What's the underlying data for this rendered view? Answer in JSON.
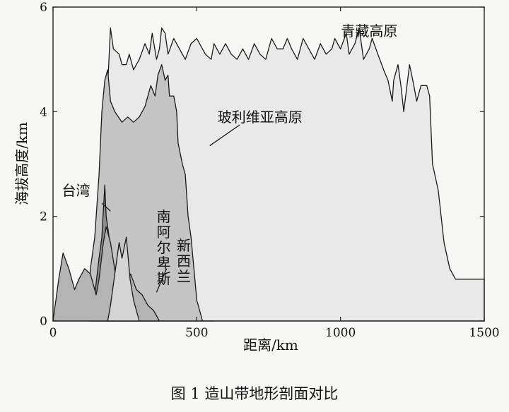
{
  "caption": "图 1   造山带地形剖面对比",
  "chart_data": {
    "type": "area",
    "xlabel": "距离/km",
    "ylabel": "海拔高度/km",
    "xlim": [
      0,
      1500
    ],
    "ylim": [
      0,
      6
    ],
    "xticks": [
      0,
      500,
      1000,
      1500
    ],
    "yticks": [
      0,
      2,
      4,
      6
    ],
    "grid": false,
    "series": [
      {
        "name": "青藏高原",
        "fill": "#e9e9e9",
        "points": [
          [
            150,
            0
          ],
          [
            175,
            0.9
          ],
          [
            190,
            4.5
          ],
          [
            200,
            5.6
          ],
          [
            210,
            5.2
          ],
          [
            230,
            5.1
          ],
          [
            240,
            4.9
          ],
          [
            255,
            4.9
          ],
          [
            265,
            5.1
          ],
          [
            280,
            4.8
          ],
          [
            290,
            4.9
          ],
          [
            300,
            5.0
          ],
          [
            320,
            5.3
          ],
          [
            335,
            5.1
          ],
          [
            345,
            5.5
          ],
          [
            360,
            5.0
          ],
          [
            370,
            5.2
          ],
          [
            378,
            5.6
          ],
          [
            390,
            5.5
          ],
          [
            400,
            5.1
          ],
          [
            420,
            5.4
          ],
          [
            440,
            5.2
          ],
          [
            460,
            5.0
          ],
          [
            480,
            5.3
          ],
          [
            500,
            5.4
          ],
          [
            530,
            5.1
          ],
          [
            550,
            5.0
          ],
          [
            560,
            5.3
          ],
          [
            580,
            5.1
          ],
          [
            600,
            5.3
          ],
          [
            620,
            5.1
          ],
          [
            640,
            5.0
          ],
          [
            660,
            5.2
          ],
          [
            680,
            5.0
          ],
          [
            700,
            5.3
          ],
          [
            720,
            5.1
          ],
          [
            740,
            5.0
          ],
          [
            760,
            5.4
          ],
          [
            780,
            5.2
          ],
          [
            800,
            5.2
          ],
          [
            815,
            5.4
          ],
          [
            830,
            5.2
          ],
          [
            850,
            5.0
          ],
          [
            870,
            5.4
          ],
          [
            890,
            5.2
          ],
          [
            910,
            5.0
          ],
          [
            930,
            5.3
          ],
          [
            950,
            5.1
          ],
          [
            970,
            5.2
          ],
          [
            980,
            5.4
          ],
          [
            1000,
            5.2
          ],
          [
            1020,
            5.5
          ],
          [
            1030,
            5.1
          ],
          [
            1050,
            5.3
          ],
          [
            1065,
            5.6
          ],
          [
            1080,
            5.0
          ],
          [
            1100,
            5.2
          ],
          [
            1110,
            5.4
          ],
          [
            1130,
            5.1
          ],
          [
            1150,
            4.8
          ],
          [
            1165,
            4.6
          ],
          [
            1180,
            4.2
          ],
          [
            1185,
            4.6
          ],
          [
            1200,
            4.9
          ],
          [
            1210,
            4.5
          ],
          [
            1220,
            4.0
          ],
          [
            1240,
            4.9
          ],
          [
            1255,
            4.5
          ],
          [
            1265,
            4.2
          ],
          [
            1280,
            4.5
          ],
          [
            1300,
            4.5
          ],
          [
            1310,
            4.3
          ],
          [
            1320,
            3.0
          ],
          [
            1340,
            2.5
          ],
          [
            1360,
            1.5
          ],
          [
            1380,
            1.0
          ],
          [
            1400,
            0.8
          ],
          [
            1500,
            0.8
          ]
        ]
      },
      {
        "name": "玻利维亚高原",
        "fill": "#c4c4c4",
        "points": [
          [
            120,
            0
          ],
          [
            130,
            1.0
          ],
          [
            145,
            1.6
          ],
          [
            160,
            2.8
          ],
          [
            170,
            4.0
          ],
          [
            180,
            4.6
          ],
          [
            190,
            4.8
          ],
          [
            200,
            4.2
          ],
          [
            215,
            4.0
          ],
          [
            240,
            3.8
          ],
          [
            260,
            3.9
          ],
          [
            280,
            3.8
          ],
          [
            300,
            3.9
          ],
          [
            320,
            4.1
          ],
          [
            340,
            4.5
          ],
          [
            355,
            4.3
          ],
          [
            365,
            4.7
          ],
          [
            378,
            4.9
          ],
          [
            390,
            4.6
          ],
          [
            400,
            4.7
          ],
          [
            405,
            4.3
          ],
          [
            420,
            4.3
          ],
          [
            430,
            4.0
          ],
          [
            435,
            3.4
          ],
          [
            450,
            3.0
          ],
          [
            460,
            2.8
          ],
          [
            470,
            2.0
          ],
          [
            480,
            1.6
          ],
          [
            490,
            1.0
          ],
          [
            500,
            0.4
          ],
          [
            520,
            0.0
          ],
          [
            560,
            0.0
          ]
        ]
      },
      {
        "name": "台湾",
        "fill": "#8e8e8e",
        "points": [
          [
            130,
            0
          ],
          [
            145,
            0.5
          ],
          [
            160,
            1.2
          ],
          [
            170,
            1.6
          ],
          [
            180,
            2.6
          ],
          [
            185,
            2.0
          ],
          [
            190,
            1.8
          ],
          [
            200,
            1.4
          ],
          [
            210,
            0.8
          ],
          [
            225,
            0.2
          ],
          [
            240,
            0.0
          ]
        ]
      },
      {
        "name": "新西兰",
        "fill": "#b4b4b4",
        "points": [
          [
            0,
            0
          ],
          [
            5,
            0.2
          ],
          [
            20,
            0.8
          ],
          [
            35,
            1.3
          ],
          [
            55,
            1.0
          ],
          [
            75,
            0.6
          ],
          [
            90,
            0.8
          ],
          [
            110,
            1.0
          ],
          [
            130,
            0.9
          ],
          [
            150,
            0.5
          ],
          [
            160,
            0.8
          ],
          [
            175,
            1.5
          ],
          [
            185,
            1.8
          ],
          [
            200,
            1.5
          ],
          [
            220,
            0.8
          ],
          [
            240,
            0.4
          ],
          [
            250,
            0.6
          ],
          [
            270,
            0.9
          ],
          [
            290,
            0.6
          ],
          [
            310,
            0.5
          ],
          [
            330,
            0.3
          ],
          [
            350,
            0.2
          ],
          [
            370,
            0.0
          ]
        ]
      },
      {
        "name": "南阿尔卑斯",
        "fill": "#d4d4d4",
        "points": [
          [
            190,
            0
          ],
          [
            200,
            0.3
          ],
          [
            215,
            0.9
          ],
          [
            230,
            1.5
          ],
          [
            240,
            1.2
          ],
          [
            255,
            1.6
          ],
          [
            260,
            1.3
          ],
          [
            268,
            0.8
          ],
          [
            280,
            0.4
          ],
          [
            300,
            0.0
          ]
        ]
      }
    ],
    "annotations": [
      {
        "text": "青藏高原",
        "x": 1100,
        "y": 5.45
      },
      {
        "text": "玻利维亚高原",
        "x": 720,
        "y": 3.8
      },
      {
        "text": "台湾",
        "x": 80,
        "y": 2.4
      },
      {
        "text": "南阿尔卑斯",
        "x": 385,
        "y": 1.9
      },
      {
        "text": "新西兰",
        "x": 455,
        "y": 1.35
      }
    ]
  }
}
